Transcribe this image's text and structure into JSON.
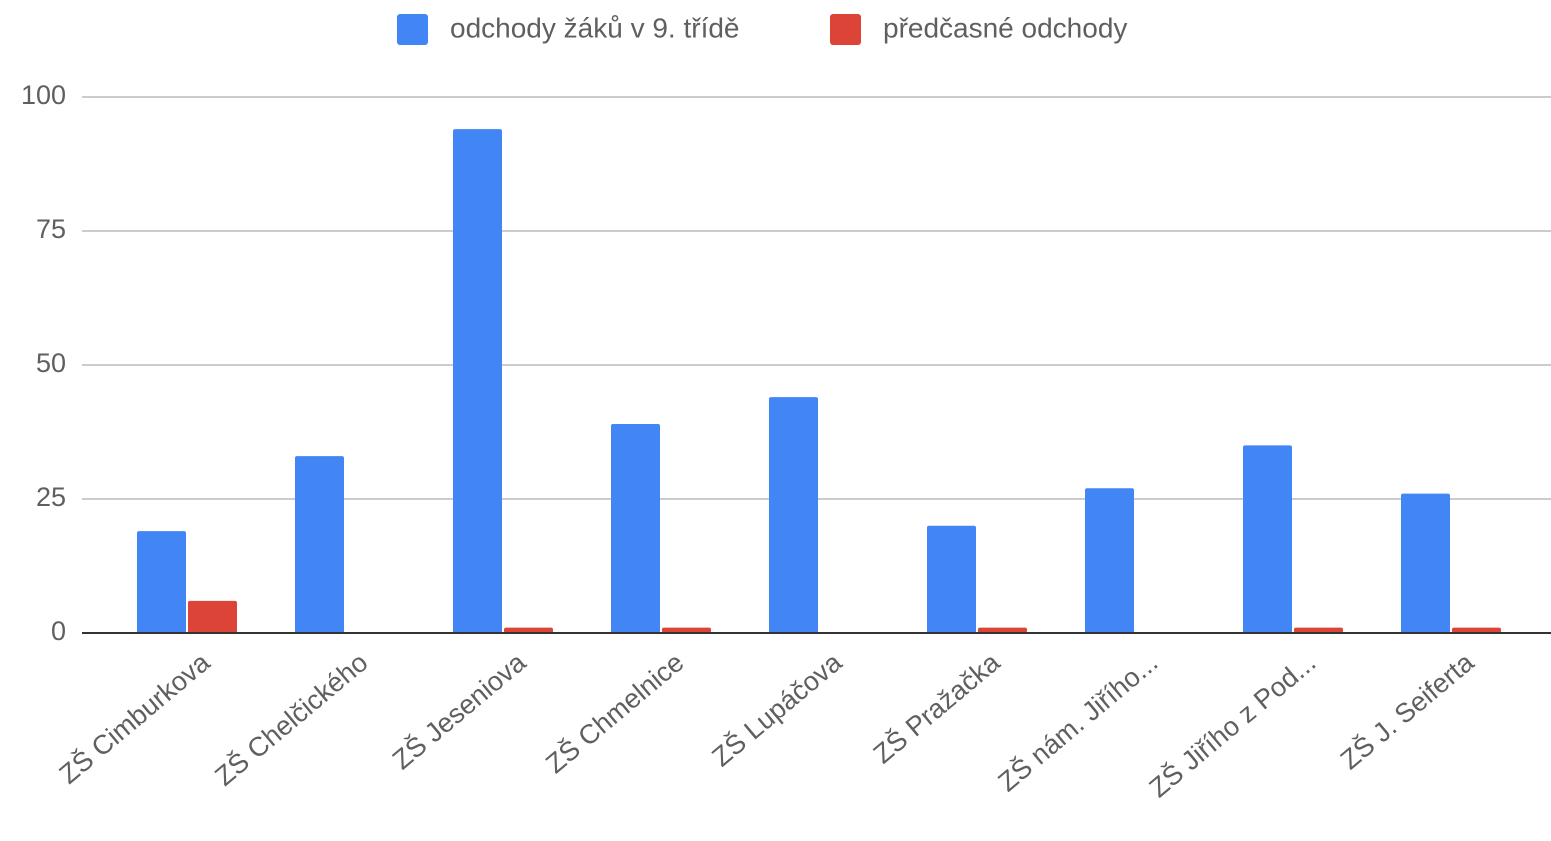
{
  "chart_data": {
    "type": "bar",
    "categories": [
      "ZŠ Cimburkova",
      "ZŠ Chelčického",
      "ZŠ Jeseniova",
      "ZŠ Chmelnice",
      "ZŠ Lupáčova",
      "ZŠ Pražačka",
      "ZŠ nám. Jiřího...",
      "ZŠ Jiřího z Pod...",
      "ZŠ J. Seiferta"
    ],
    "series": [
      {
        "name": "odchody žáků v 9. třídě",
        "color": "#4285f4",
        "values": [
          19,
          33,
          94,
          39,
          44,
          20,
          27,
          35,
          26
        ]
      },
      {
        "name": "předčasné odchody",
        "color": "#db4437",
        "values": [
          6,
          0,
          1,
          1,
          0,
          1,
          0,
          1,
          1
        ]
      }
    ],
    "ylim": [
      0,
      100
    ],
    "yticks": [
      0,
      25,
      50,
      75,
      100
    ],
    "grid": true,
    "legend": "top"
  }
}
